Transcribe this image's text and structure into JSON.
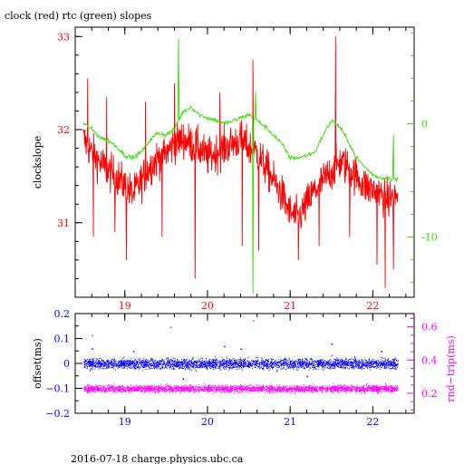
{
  "title": "clock (red) rtc (green) slopes",
  "footer": "2016-07-18 charge.physics.ubc.ca",
  "colors": {
    "red": "#ff0000",
    "green": "#33dd00",
    "blue": "#0000ff",
    "magenta": "#ff00ff",
    "frame": "#000000"
  },
  "chart_data": [
    {
      "type": "line",
      "panel": "top",
      "title": "",
      "ylabel": "clockslope",
      "xlim": [
        18.4,
        22.5
      ],
      "x_ticks": [
        19,
        20,
        21,
        22
      ],
      "x_tick_labels": [
        "19",
        "20",
        "21",
        "22"
      ],
      "ylim": [
        30.2,
        33.1
      ],
      "y_ticks": [
        31,
        32,
        33
      ],
      "y_tick_labels": [
        "31",
        "32",
        "33"
      ],
      "y2lim": [
        -15.3,
        8.5
      ],
      "y2_ticks": [
        -10,
        0
      ],
      "y2_tick_labels": [
        "-10",
        "0"
      ],
      "series": [
        {
          "name": "clock",
          "color": "#ff0000",
          "axis": "left",
          "x": [
            18.5,
            18.6,
            18.7,
            18.8,
            18.9,
            19.0,
            19.1,
            19.2,
            19.3,
            19.4,
            19.5,
            19.6,
            19.7,
            19.8,
            19.9,
            20.0,
            20.1,
            20.2,
            20.3,
            20.4,
            20.5,
            20.6,
            20.7,
            20.8,
            20.9,
            21.0,
            21.1,
            21.2,
            21.3,
            21.4,
            21.5,
            21.6,
            21.7,
            21.8,
            21.9,
            22.0,
            22.1,
            22.2,
            22.3
          ],
          "y": [
            31.9,
            31.75,
            31.65,
            31.55,
            31.5,
            31.4,
            31.3,
            31.45,
            31.6,
            31.7,
            31.75,
            31.85,
            31.9,
            31.85,
            31.8,
            31.7,
            31.75,
            31.8,
            31.85,
            31.9,
            31.8,
            31.75,
            31.6,
            31.45,
            31.3,
            31.1,
            31.05,
            31.2,
            31.35,
            31.45,
            31.55,
            31.65,
            31.6,
            31.5,
            31.4,
            31.35,
            31.3,
            31.25,
            31.3
          ],
          "noise": 0.22,
          "spikes": [
            {
              "x": 18.55,
              "y": 32.55
            },
            {
              "x": 18.62,
              "y": 30.85
            },
            {
              "x": 18.78,
              "y": 32.35
            },
            {
              "x": 18.88,
              "y": 30.9
            },
            {
              "x": 19.02,
              "y": 30.6
            },
            {
              "x": 19.25,
              "y": 32.3
            },
            {
              "x": 19.45,
              "y": 30.85
            },
            {
              "x": 19.6,
              "y": 32.5
            },
            {
              "x": 19.85,
              "y": 30.4
            },
            {
              "x": 20.15,
              "y": 32.4
            },
            {
              "x": 20.42,
              "y": 30.75
            },
            {
              "x": 20.55,
              "y": 32.75
            },
            {
              "x": 20.62,
              "y": 30.7
            },
            {
              "x": 21.1,
              "y": 30.6
            },
            {
              "x": 21.35,
              "y": 30.75
            },
            {
              "x": 21.55,
              "y": 33.0
            },
            {
              "x": 21.72,
              "y": 30.85
            },
            {
              "x": 22.05,
              "y": 30.55
            },
            {
              "x": 22.15,
              "y": 30.3
            },
            {
              "x": 22.25,
              "y": 30.5
            }
          ]
        },
        {
          "name": "rtc",
          "color": "#33dd00",
          "axis": "right",
          "x": [
            18.5,
            18.6,
            18.7,
            18.8,
            18.9,
            19.0,
            19.1,
            19.2,
            19.3,
            19.4,
            19.5,
            19.6,
            19.7,
            19.8,
            19.9,
            20.0,
            20.1,
            20.2,
            20.3,
            20.4,
            20.5,
            20.6,
            20.7,
            20.8,
            20.9,
            21.0,
            21.1,
            21.2,
            21.3,
            21.4,
            21.5,
            21.6,
            21.7,
            21.8,
            21.9,
            22.0,
            22.1,
            22.2,
            22.3
          ],
          "y": [
            0.0,
            -0.5,
            -1.2,
            -1.5,
            -2.0,
            -2.8,
            -3.0,
            -2.5,
            -1.5,
            -0.8,
            -1.0,
            -0.5,
            1.0,
            1.5,
            0.8,
            0.5,
            0.3,
            0.0,
            0.2,
            0.5,
            0.8,
            0.3,
            -0.3,
            -1.0,
            -1.8,
            -3.0,
            -3.0,
            -2.8,
            -2.5,
            -1.0,
            0.3,
            -0.3,
            -1.5,
            -3.0,
            -3.8,
            -4.5,
            -4.8,
            -4.8,
            -5.0
          ],
          "noise": 0.35,
          "spikes": [
            {
              "x": 19.65,
              "y": 7.5
            },
            {
              "x": 20.55,
              "y": -15.0
            },
            {
              "x": 20.58,
              "y": 2.8
            },
            {
              "x": 22.25,
              "y": -1.0
            }
          ]
        }
      ]
    },
    {
      "type": "scatter",
      "panel": "bottom",
      "title": "",
      "ylabel": "offset(ms)",
      "y2label": "rnd−trip(ms)",
      "xlim": [
        18.4,
        22.5
      ],
      "x_ticks": [
        19,
        20,
        21,
        22
      ],
      "x_tick_labels": [
        "19",
        "20",
        "21",
        "22"
      ],
      "ylim": [
        -0.2,
        0.2
      ],
      "y_ticks": [
        -0.2,
        -0.1,
        0,
        0.1,
        0.2
      ],
      "y_tick_labels": [
        "−0.2",
        "−0.1",
        "0",
        "0.1",
        "0.2"
      ],
      "y2lim": [
        0.08,
        0.68
      ],
      "y2_ticks": [
        0.2,
        0.4,
        0.6
      ],
      "y2_tick_labels": [
        "0.2",
        "0.4",
        "0.6"
      ],
      "series": [
        {
          "name": "offset",
          "color": "#0000ff",
          "axis": "left",
          "x_range": [
            18.5,
            22.3
          ],
          "center": 0.0,
          "spread": 0.022,
          "outliers": [
            {
              "x": 18.6,
              "y": 0.06
            },
            {
              "x": 19.1,
              "y": 0.05
            },
            {
              "x": 20.2,
              "y": 0.07
            },
            {
              "x": 20.4,
              "y": 0.06
            },
            {
              "x": 21.5,
              "y": 0.08
            },
            {
              "x": 22.1,
              "y": 0.05
            },
            {
              "x": 19.7,
              "y": -0.06
            },
            {
              "x": 21.2,
              "y": -0.05
            }
          ]
        },
        {
          "name": "rnd-trip",
          "color": "#ff00ff",
          "axis": "right",
          "x_range": [
            18.5,
            22.3
          ],
          "center": 0.23,
          "spread": 0.022,
          "outliers": [
            {
              "x": 18.6,
              "y": 0.55
            },
            {
              "x": 19.55,
              "y": 0.6
            },
            {
              "x": 20.55,
              "y": 0.64
            },
            {
              "x": 20.6,
              "y": 0.42
            },
            {
              "x": 21.5,
              "y": 0.43
            },
            {
              "x": 22.1,
              "y": 0.42
            },
            {
              "x": 19.2,
              "y": 0.4
            },
            {
              "x": 20.1,
              "y": 0.41
            }
          ]
        }
      ]
    }
  ]
}
